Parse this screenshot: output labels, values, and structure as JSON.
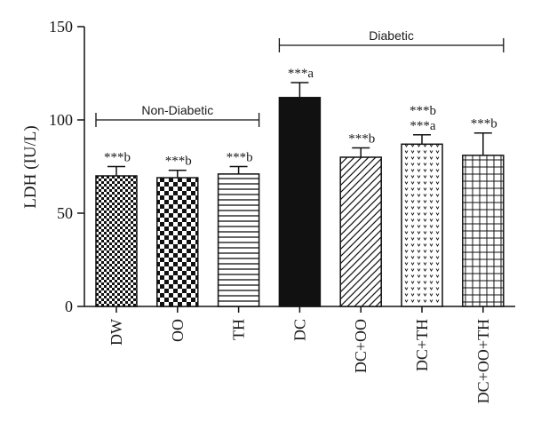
{
  "chart_data": {
    "type": "bar",
    "ylabel": "LDH (IU/L)",
    "ylim": [
      0,
      150
    ],
    "yticks": [
      "0",
      "50",
      "100",
      "150"
    ],
    "grid": false,
    "categories": [
      "DW",
      "OO",
      "TH",
      "DC",
      "DC+OO",
      "DC+TH",
      "DC+OO+TH"
    ],
    "values": [
      70,
      69,
      71,
      112,
      80,
      87,
      81
    ],
    "errors": [
      5,
      4,
      4,
      8,
      5,
      5,
      12
    ],
    "patterns": [
      "fine-checker",
      "checker",
      "horizontal-lines",
      "solid",
      "diagonal-lines",
      "dots",
      "grid"
    ],
    "annotations": [
      [
        "***b"
      ],
      [
        "***b"
      ],
      [
        "***b"
      ],
      [
        "***a"
      ],
      [
        "***b"
      ],
      [
        "***a",
        "***b"
      ],
      [
        "***b"
      ]
    ],
    "groups": [
      {
        "label": "Non-Diabetic",
        "from": 0,
        "to": 2,
        "y": 100
      },
      {
        "label": "Diabetic",
        "from": 3,
        "to": 6,
        "y": 140
      }
    ],
    "bar_color": "#111111"
  }
}
